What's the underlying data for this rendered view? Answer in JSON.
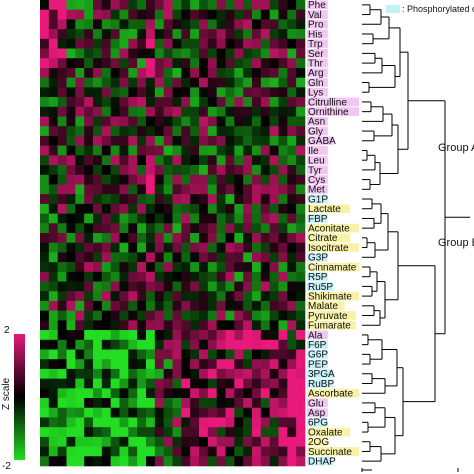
{
  "chart_data": {
    "type": "heatmap",
    "rows": [
      {
        "name": "Phe",
        "tag": "amino"
      },
      {
        "name": "Val",
        "tag": "amino"
      },
      {
        "name": "Pro",
        "tag": "amino"
      },
      {
        "name": "His",
        "tag": "amino"
      },
      {
        "name": "Trp",
        "tag": "amino"
      },
      {
        "name": "Ser",
        "tag": "amino"
      },
      {
        "name": "Thr",
        "tag": "amino"
      },
      {
        "name": "Arg",
        "tag": "amino"
      },
      {
        "name": "Gln",
        "tag": "amino"
      },
      {
        "name": "Lys",
        "tag": "amino"
      },
      {
        "name": "Citrulline",
        "tag": "amino"
      },
      {
        "name": "Ornithine",
        "tag": "amino"
      },
      {
        "name": "Asn",
        "tag": "amino"
      },
      {
        "name": "Gly",
        "tag": "amino"
      },
      {
        "name": "GABA",
        "tag": "amino"
      },
      {
        "name": "Ile",
        "tag": "amino"
      },
      {
        "name": "Leu",
        "tag": "amino"
      },
      {
        "name": "Tyr",
        "tag": "amino"
      },
      {
        "name": "Cys",
        "tag": "amino"
      },
      {
        "name": "Met",
        "tag": "amino"
      },
      {
        "name": "G1P",
        "tag": "phospho"
      },
      {
        "name": "Lactate",
        "tag": "organic"
      },
      {
        "name": "FBP",
        "tag": "phospho"
      },
      {
        "name": "Aconitate",
        "tag": "organic"
      },
      {
        "name": "Citrate",
        "tag": "organic"
      },
      {
        "name": "Isocitrate",
        "tag": "organic"
      },
      {
        "name": "G3P",
        "tag": "phospho"
      },
      {
        "name": "Cinnamate",
        "tag": "organic"
      },
      {
        "name": "R5P",
        "tag": "phospho"
      },
      {
        "name": "Ru5P",
        "tag": "phospho"
      },
      {
        "name": "Shikimate",
        "tag": "organic"
      },
      {
        "name": "Malate",
        "tag": "organic"
      },
      {
        "name": "Pyruvate",
        "tag": "organic"
      },
      {
        "name": "Fumarate",
        "tag": "organic"
      },
      {
        "name": "Ala",
        "tag": "amino"
      },
      {
        "name": "F6P",
        "tag": "phospho"
      },
      {
        "name": "G6P",
        "tag": "phospho"
      },
      {
        "name": "PEP",
        "tag": "phospho"
      },
      {
        "name": "3PGA",
        "tag": "phospho"
      },
      {
        "name": "RuBP",
        "tag": "phospho"
      },
      {
        "name": "Ascorbate",
        "tag": "organic"
      },
      {
        "name": "Glu",
        "tag": "amino"
      },
      {
        "name": "Asp",
        "tag": "amino"
      },
      {
        "name": "6PG",
        "tag": "phospho"
      },
      {
        "name": "Oxalate",
        "tag": "organic"
      },
      {
        "name": "2OG",
        "tag": "organic"
      },
      {
        "name": "Succinate",
        "tag": "organic"
      },
      {
        "name": "DHAP",
        "tag": "phospho"
      }
    ],
    "column_count": 30,
    "legend": {
      "phospho_label": ": Phosphorylated compound",
      "phospho_color": "#c6f0f7"
    },
    "highlight_colors": {
      "amino": "#f2c6f2",
      "organic": "#f7f2a8",
      "phospho": "#c6f0f7"
    },
    "groups": [
      {
        "label": "Group A"
      },
      {
        "label": "Group B"
      }
    ],
    "colorscale": {
      "title": "Z scale",
      "max": 2,
      "min": -2,
      "max_label": "2",
      "min_label": "-2",
      "high_color": "#e8197a",
      "mid_color": "#000000",
      "low_color": "#22dd22"
    }
  }
}
